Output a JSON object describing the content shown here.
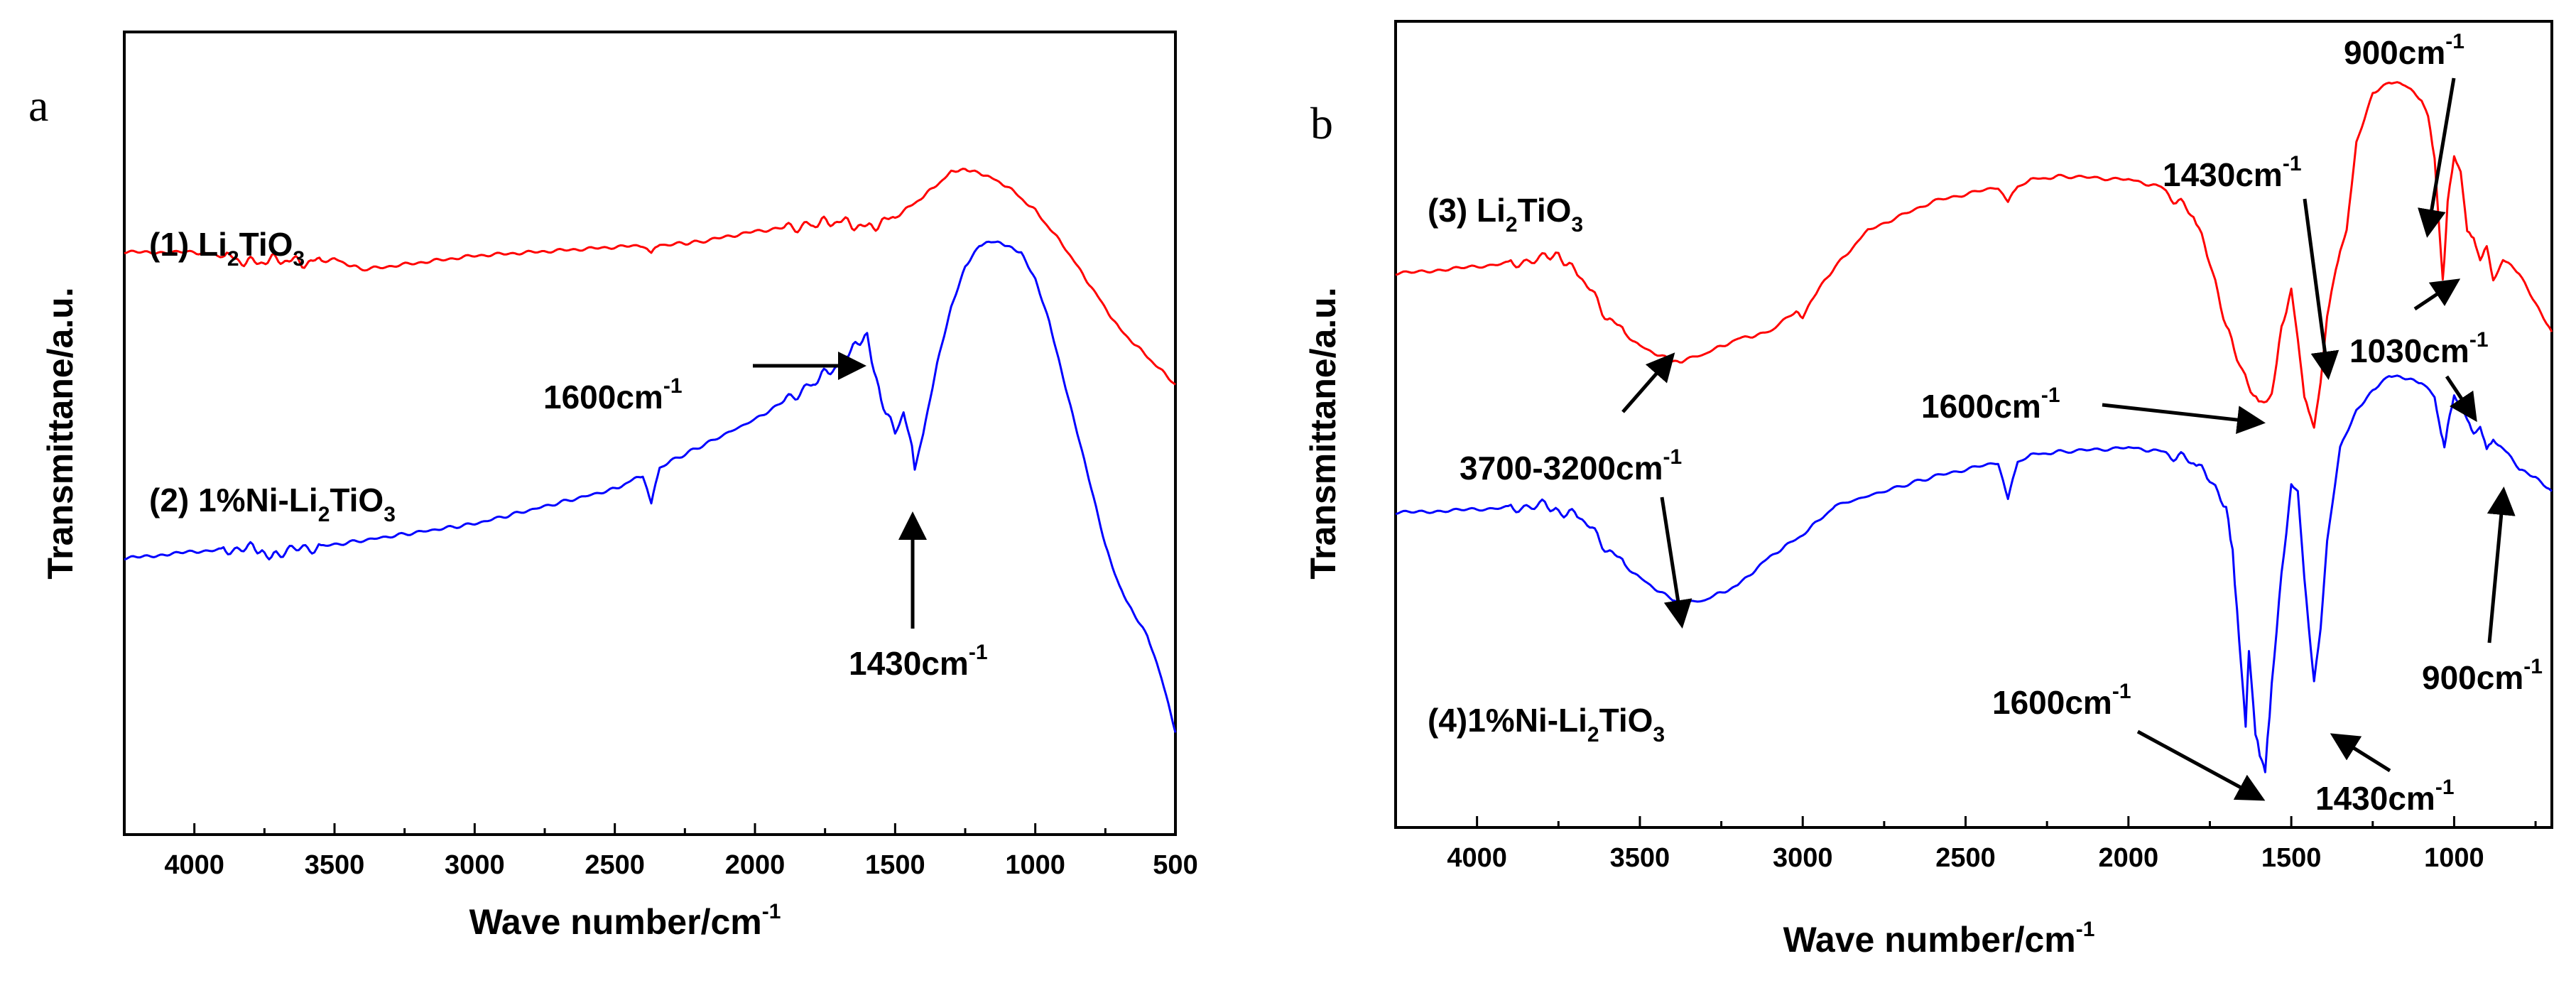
{
  "chart_data": [
    {
      "panel": "a",
      "type": "line",
      "xlabel": "Wave number/cm",
      "xlabel_sup": "-1",
      "ylabel": "Transmittane/a.u.",
      "xlim": [
        4250,
        500
      ],
      "ylim": [
        0,
        100
      ],
      "xticks": [
        4000,
        3500,
        3000,
        2500,
        2000,
        1500,
        1000,
        500
      ],
      "series": [
        {
          "name": "(1) Li2TiO3",
          "label_parts": [
            "(1) Li",
            "2",
            "TiO",
            "3"
          ],
          "color": "#ff0000",
          "x": [
            4250,
            4000,
            3900,
            3800,
            3700,
            3600,
            3500,
            3400,
            3200,
            3000,
            2800,
            2600,
            2400,
            2370,
            2340,
            2200,
            2000,
            1800,
            1700,
            1600,
            1500,
            1400,
            1300,
            1250,
            1200,
            1100,
            1000,
            900,
            800,
            700,
            600,
            500
          ],
          "y": [
            76,
            76,
            75.5,
            74.5,
            75,
            74.5,
            75,
            73.5,
            74.5,
            75.5,
            76,
            76.5,
            77,
            76,
            77,
            77.5,
            79,
            80,
            80.5,
            79.5,
            81,
            84,
            87.5,
            88,
            87.5,
            85.5,
            82,
            77,
            71,
            65,
            61,
            57
          ]
        },
        {
          "name": "(2) 1%Ni-Li2TiO3",
          "label_parts": [
            "(2) 1%Ni-Li",
            "2",
            "TiO",
            "3"
          ],
          "color": "#0000ff",
          "x": [
            4250,
            4000,
            3800,
            3750,
            3700,
            3500,
            3000,
            2500,
            2400,
            2370,
            2340,
            2300,
            2000,
            1800,
            1700,
            1650,
            1600,
            1550,
            1500,
            1470,
            1440,
            1430,
            1400,
            1350,
            1300,
            1250,
            1200,
            1150,
            1100,
            1050,
            1000,
            950,
            900,
            850,
            800,
            750,
            700,
            650,
            600,
            550,
            500
          ],
          "y": [
            32,
            33,
            33.5,
            32.5,
            33,
            34,
            37,
            42,
            44,
            40,
            45,
            46,
            52,
            57,
            60,
            62,
            64,
            55,
            50,
            53,
            48,
            45,
            50,
            60,
            68,
            74,
            77,
            77.5,
            77,
            76,
            72,
            66,
            58,
            50,
            42,
            34,
            28,
            24,
            21,
            15,
            7
          ]
        }
      ],
      "annotations": [
        {
          "text": "1600cm",
          "sup": "-1"
        },
        {
          "text": "1430cm",
          "sup": "-1"
        }
      ]
    },
    {
      "panel": "b",
      "type": "line",
      "xlabel": "Wave number/cm",
      "xlabel_sup": "-1",
      "ylabel": "Transmittane/a.u.",
      "xlim": [
        4250,
        700
      ],
      "ylim": [
        0,
        100
      ],
      "xticks": [
        4000,
        3500,
        3000,
        2500,
        2000,
        1500,
        1000
      ],
      "series": [
        {
          "name": "(3) Li2TiO3",
          "label_parts": [
            "(3) Li",
            "2",
            "TiO",
            "3"
          ],
          "color": "#ff0000",
          "x": [
            4250,
            4000,
            3800,
            3750,
            3700,
            3600,
            3500,
            3400,
            3370,
            3300,
            3200,
            3100,
            3020,
            3000,
            2950,
            2900,
            2800,
            2600,
            2400,
            2370,
            2340,
            2300,
            2200,
            2000,
            1900,
            1800,
            1750,
            1700,
            1650,
            1600,
            1560,
            1530,
            1500,
            1480,
            1460,
            1440,
            1430,
            1410,
            1390,
            1370,
            1350,
            1330,
            1300,
            1250,
            1200,
            1150,
            1100,
            1080,
            1060,
            1045,
            1035,
            1030,
            1020,
            1000,
            980,
            960,
            940,
            920,
            900,
            880,
            850,
            800,
            750,
            700
          ],
          "y": [
            72,
            73,
            74,
            74.5,
            73,
            66,
            62,
            60,
            60,
            61,
            63,
            64,
            67,
            66,
            70,
            73,
            78,
            82,
            84,
            82,
            84,
            85,
            85.5,
            85,
            84,
            80,
            74,
            65,
            58,
            54,
            55,
            64,
            70,
            63,
            55,
            52,
            51,
            57,
            66,
            71,
            75,
            78,
            90,
            97,
            98.5,
            98,
            96,
            94,
            88,
            78,
            71,
            74,
            82,
            88,
            86,
            78,
            77,
            74,
            76,
            71,
            74,
            72,
            68,
            64
          ]
        },
        {
          "name": "(4)1%Ni-Li2TiO3",
          "label_parts": [
            "(4)1%Ni-Li",
            "2",
            "TiO",
            "3"
          ],
          "color": "#0000ff",
          "x": [
            4250,
            4000,
            3800,
            3750,
            3700,
            3600,
            3500,
            3400,
            3370,
            3300,
            3200,
            3100,
            3000,
            2900,
            2600,
            2400,
            2370,
            2340,
            2300,
            2200,
            2000,
            1900,
            1800,
            1750,
            1700,
            1680,
            1660,
            1640,
            1630,
            1610,
            1590,
            1580,
            1560,
            1530,
            1500,
            1480,
            1460,
            1440,
            1430,
            1410,
            1390,
            1350,
            1300,
            1250,
            1200,
            1150,
            1100,
            1060,
            1040,
            1030,
            1020,
            1000,
            980,
            960,
            940,
            920,
            900,
            880,
            850,
            800,
            750,
            700
          ],
          "y": [
            39,
            39.5,
            40,
            39,
            39.5,
            34,
            30,
            27,
            26.5,
            27,
            29,
            33,
            36,
            40,
            44,
            46,
            41,
            46,
            47,
            47.5,
            48,
            47.5,
            46,
            44,
            40,
            34,
            22,
            10,
            20,
            9,
            5,
            3,
            15,
            30,
            43,
            42,
            30,
            20,
            16,
            23,
            35,
            48,
            53,
            56,
            58,
            57.5,
            57,
            55,
            50,
            48,
            51,
            55,
            53.5,
            52,
            50,
            51,
            48,
            49,
            48,
            45,
            44,
            42
          ]
        }
      ],
      "annotations": [
        {
          "text": "900cm",
          "sup": "-1"
        },
        {
          "text": "1430cm",
          "sup": "-1"
        },
        {
          "text": "1030cm",
          "sup": "-1"
        },
        {
          "text": "1600cm",
          "sup": "-1"
        },
        {
          "text": "3700-3200cm",
          "sup": "-1"
        },
        {
          "text": "1600cm",
          "sup": "-1"
        },
        {
          "text": "1430cm",
          "sup": "-1"
        },
        {
          "text": "900cm",
          "sup": "-1"
        }
      ]
    }
  ]
}
